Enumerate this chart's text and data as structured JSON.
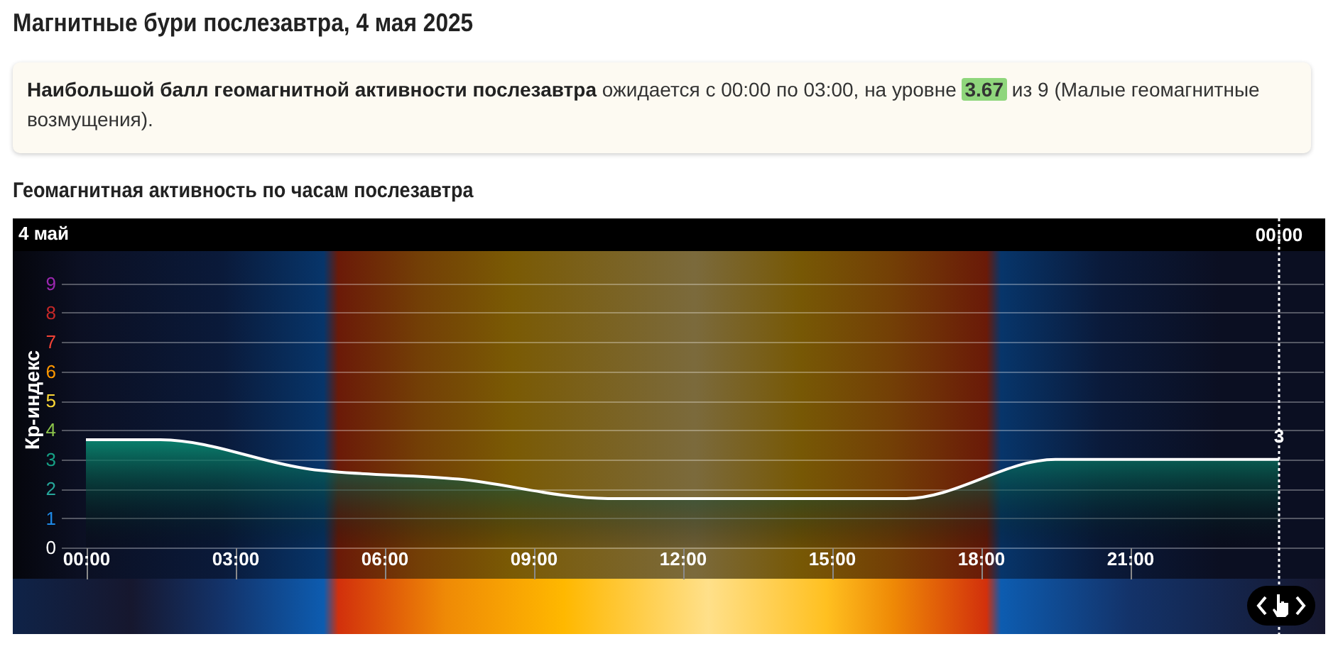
{
  "chart_data": {
    "type": "area",
    "title": "Магнитные бури послезавтра, 4 мая 2025",
    "subtitle": "Геомагнитная активность по часам послезавтра",
    "ylabel": "Кр-индекс",
    "annotations": [
      "Наибольшой балл геомагнитной активности послезавтра",
      "ожидается с 00:00 по 03:00, на уровне",
      "3.67",
      "из 9 (Малые геомагнитные возмущения).",
      "4 май",
      {
        "text": "3",
        "x": 24,
        "y": 3
      },
      {
        "text": "00:00",
        "x": 24
      }
    ],
    "x": [
      0,
      1.5,
      4.5,
      7.5,
      10.5,
      13.5,
      16.5,
      19.5,
      22.5,
      24
    ],
    "series": [
      {
        "color": "#0a8c74",
        "values": [
          3.67,
          3.67,
          2.67,
          2.33,
          1.67,
          1.67,
          1.67,
          3,
          3,
          3
        ]
      }
    ],
    "xlim": [
      -0.5,
      24.9
    ],
    "xticks": [
      {
        "value": 0,
        "label": "00:00"
      },
      {
        "value": 3,
        "label": "03:00"
      },
      {
        "value": 6,
        "label": "06:00"
      },
      {
        "value": 9,
        "label": "09:00"
      },
      {
        "value": 12,
        "label": "12:00"
      },
      {
        "value": 15,
        "label": "15:00"
      },
      {
        "value": 18,
        "label": "18:00"
      },
      {
        "value": 21,
        "label": "21:00"
      }
    ],
    "ylim": [
      0,
      10.1
    ],
    "yticks": [
      0,
      1,
      2,
      3,
      4,
      5,
      6,
      7,
      8,
      9
    ],
    "ref_lines": [
      {
        "axis": "x",
        "value": 24,
        "color": "#ffffff",
        "line_style": "dotted"
      }
    ],
    "grid": "y"
  }
}
